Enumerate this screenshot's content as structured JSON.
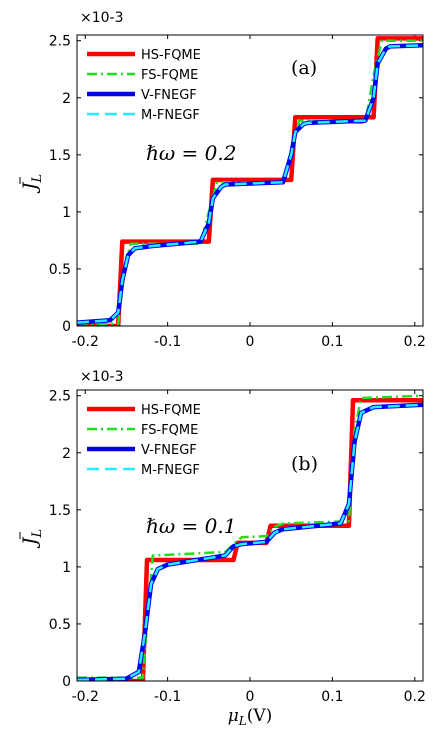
{
  "figure": {
    "x_axis_label": "μL(V)",
    "x_axis_label_main": "μ",
    "x_axis_label_sub": "L",
    "x_axis_label_suffix": "(V)"
  },
  "chart_data": [
    {
      "type": "line",
      "panel_label": "(a)",
      "annotation": "ℏω = 0.2",
      "ylabel_main": "J",
      "ylabel_sub": "L",
      "y_exponent_label": "×10-3",
      "xlim": [
        -0.21,
        0.21
      ],
      "ylim": [
        0,
        2.55
      ],
      "xticks": [
        -0.2,
        -0.1,
        0,
        0.1,
        0.2
      ],
      "xtick_labels": [
        "-0.2",
        "-0.1",
        "0",
        "0.1",
        "0.2"
      ],
      "yticks": [
        0,
        0.5,
        1,
        1.5,
        2,
        2.5
      ],
      "ytick_labels": [
        "0",
        "0.5",
        "1",
        "1.5",
        "2",
        "2.5"
      ],
      "legend_position": "top-left",
      "series": [
        {
          "name": "HS-FQME",
          "color": "#ff0000",
          "style": "solid",
          "x": [
            -0.21,
            -0.16,
            -0.155,
            -0.05,
            -0.045,
            0.05,
            0.055,
            0.15,
            0.155,
            0.21
          ],
          "y": [
            0,
            0,
            0.74,
            0.74,
            1.28,
            1.28,
            1.83,
            1.83,
            2.52,
            2.52
          ]
        },
        {
          "name": "FS-FQME",
          "color": "#22dd22",
          "style": "dashdot",
          "x": [
            -0.21,
            -0.16,
            -0.152,
            -0.145,
            -0.06,
            -0.05,
            -0.04,
            0.04,
            0.05,
            0.06,
            0.14,
            0.15,
            0.16,
            0.21
          ],
          "y": [
            0.02,
            0.02,
            0.5,
            0.72,
            0.72,
            1.0,
            1.26,
            1.26,
            1.55,
            1.8,
            1.78,
            2.2,
            2.5,
            2.5
          ]
        },
        {
          "name": "V-FNEGF",
          "color": "#0000ee",
          "style": "solid",
          "x": [
            -0.21,
            -0.17,
            -0.16,
            -0.155,
            -0.148,
            -0.14,
            -0.12,
            -0.06,
            -0.05,
            -0.045,
            -0.035,
            -0.03,
            0.04,
            0.05,
            0.055,
            0.065,
            0.07,
            0.14,
            0.15,
            0.155,
            0.165,
            0.17,
            0.21
          ],
          "y": [
            0.03,
            0.05,
            0.12,
            0.4,
            0.62,
            0.68,
            0.7,
            0.74,
            0.9,
            1.12,
            1.22,
            1.24,
            1.26,
            1.5,
            1.7,
            1.77,
            1.78,
            1.8,
            2.0,
            2.3,
            2.43,
            2.45,
            2.46
          ]
        },
        {
          "name": "M-FNEGF",
          "color": "#22eeff",
          "style": "dashed",
          "x": [
            -0.21,
            -0.17,
            -0.16,
            -0.155,
            -0.148,
            -0.14,
            -0.12,
            -0.06,
            -0.05,
            -0.045,
            -0.035,
            -0.03,
            0.04,
            0.05,
            0.055,
            0.065,
            0.07,
            0.14,
            0.15,
            0.155,
            0.165,
            0.17,
            0.21
          ],
          "y": [
            0.03,
            0.05,
            0.12,
            0.4,
            0.62,
            0.68,
            0.7,
            0.74,
            0.9,
            1.12,
            1.22,
            1.24,
            1.26,
            1.5,
            1.7,
            1.77,
            1.78,
            1.8,
            2.0,
            2.3,
            2.43,
            2.45,
            2.46
          ]
        }
      ]
    },
    {
      "type": "line",
      "panel_label": "(b)",
      "annotation": "ℏω = 0.1",
      "ylabel_main": "J",
      "ylabel_sub": "L",
      "y_exponent_label": "×10-3",
      "xlim": [
        -0.21,
        0.21
      ],
      "ylim": [
        0,
        2.55
      ],
      "xticks": [
        -0.2,
        -0.1,
        0,
        0.1,
        0.2
      ],
      "xtick_labels": [
        "-0.2",
        "-0.1",
        "0",
        "0.1",
        "0.2"
      ],
      "yticks": [
        0,
        0.5,
        1,
        1.5,
        2,
        2.5
      ],
      "ytick_labels": [
        "0",
        "0.5",
        "1",
        "1.5",
        "2",
        "2.5"
      ],
      "legend_position": "top-left",
      "series": [
        {
          "name": "HS-FQME",
          "color": "#ff0000",
          "style": "solid",
          "x": [
            -0.21,
            -0.13,
            -0.125,
            -0.02,
            -0.015,
            0.02,
            0.025,
            0.12,
            0.125,
            0.21
          ],
          "y": [
            0,
            0,
            1.06,
            1.06,
            1.21,
            1.21,
            1.36,
            1.36,
            2.46,
            2.46
          ]
        },
        {
          "name": "FS-FQME",
          "color": "#22dd22",
          "style": "dashdot",
          "x": [
            -0.21,
            -0.13,
            -0.125,
            -0.118,
            -0.03,
            -0.02,
            -0.01,
            0.02,
            0.03,
            0.04,
            0.12,
            0.127,
            0.135,
            0.21
          ],
          "y": [
            0.03,
            0.03,
            0.5,
            1.1,
            1.13,
            1.2,
            1.26,
            1.27,
            1.35,
            1.38,
            1.4,
            2.2,
            2.48,
            2.5
          ]
        },
        {
          "name": "V-FNEGF",
          "color": "#0000ee",
          "style": "solid",
          "x": [
            -0.21,
            -0.15,
            -0.135,
            -0.128,
            -0.12,
            -0.112,
            -0.1,
            -0.03,
            -0.02,
            -0.01,
            0.02,
            0.03,
            0.04,
            0.11,
            0.12,
            0.127,
            0.135,
            0.15,
            0.21
          ],
          "y": [
            0.01,
            0.02,
            0.08,
            0.4,
            0.85,
            0.98,
            1.02,
            1.1,
            1.18,
            1.2,
            1.22,
            1.3,
            1.33,
            1.38,
            1.55,
            2.1,
            2.35,
            2.4,
            2.42
          ]
        },
        {
          "name": "M-FNEGF",
          "color": "#22eeff",
          "style": "dashed",
          "x": [
            -0.21,
            -0.15,
            -0.135,
            -0.128,
            -0.12,
            -0.112,
            -0.1,
            -0.03,
            -0.02,
            -0.01,
            0.02,
            0.03,
            0.04,
            0.11,
            0.12,
            0.127,
            0.135,
            0.15,
            0.21
          ],
          "y": [
            0.01,
            0.02,
            0.08,
            0.4,
            0.85,
            0.98,
            1.02,
            1.1,
            1.18,
            1.2,
            1.22,
            1.3,
            1.33,
            1.38,
            1.55,
            2.1,
            2.35,
            2.4,
            2.42
          ]
        }
      ]
    }
  ]
}
